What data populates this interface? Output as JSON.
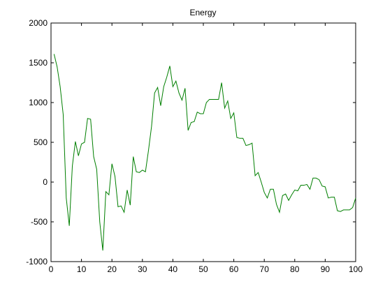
{
  "chart_data": {
    "type": "line",
    "title": "Energy",
    "xlabel": "",
    "ylabel": "",
    "xlim": [
      0,
      100
    ],
    "ylim": [
      -1000,
      2000
    ],
    "grid": false,
    "x_ticks": [
      0,
      10,
      20,
      30,
      40,
      50,
      60,
      70,
      80,
      90,
      100
    ],
    "y_ticks": [
      -1000,
      -500,
      0,
      500,
      1000,
      1500,
      2000
    ],
    "series": [
      {
        "color": "#007f00",
        "x": [
          1,
          2,
          3,
          4,
          5,
          6,
          7,
          8,
          9,
          10,
          11,
          12,
          13,
          14,
          15,
          16,
          17,
          18,
          19,
          20,
          21,
          22,
          23,
          24,
          25,
          26,
          27,
          28,
          29,
          30,
          31,
          32,
          33,
          34,
          35,
          36,
          37,
          38,
          39,
          40,
          41,
          42,
          43,
          44,
          45,
          46,
          47,
          48,
          49,
          50,
          51,
          52,
          53,
          54,
          55,
          56,
          57,
          58,
          59,
          60,
          61,
          62,
          63,
          64,
          65,
          66,
          67,
          68,
          69,
          70,
          71,
          72,
          73,
          74,
          75,
          76,
          77,
          78,
          79,
          80,
          81,
          82,
          83,
          84,
          85,
          86,
          87,
          88,
          89,
          90,
          91,
          92,
          93,
          94,
          95,
          96,
          97,
          98,
          99,
          100
        ],
        "y": [
          1610,
          1450,
          1200,
          850,
          -200,
          -550,
          200,
          510,
          330,
          480,
          500,
          800,
          790,
          320,
          160,
          -500,
          -860,
          -120,
          -160,
          230,
          70,
          -310,
          -300,
          -380,
          -100,
          -290,
          320,
          130,
          120,
          150,
          130,
          400,
          700,
          1120,
          1190,
          960,
          1200,
          1320,
          1460,
          1200,
          1270,
          1120,
          1030,
          1180,
          650,
          750,
          760,
          880,
          860,
          860,
          1000,
          1040,
          1040,
          1040,
          1040,
          1250,
          930,
          1020,
          800,
          870,
          560,
          550,
          550,
          460,
          470,
          490,
          80,
          120,
          0,
          -130,
          -200,
          -90,
          -90,
          -280,
          -380,
          -170,
          -150,
          -230,
          -160,
          -100,
          -110,
          -40,
          -40,
          -30,
          -90,
          50,
          50,
          30,
          -50,
          -60,
          -200,
          -190,
          -190,
          -360,
          -370,
          -350,
          -350,
          -350,
          -320,
          -200
        ]
      }
    ]
  }
}
